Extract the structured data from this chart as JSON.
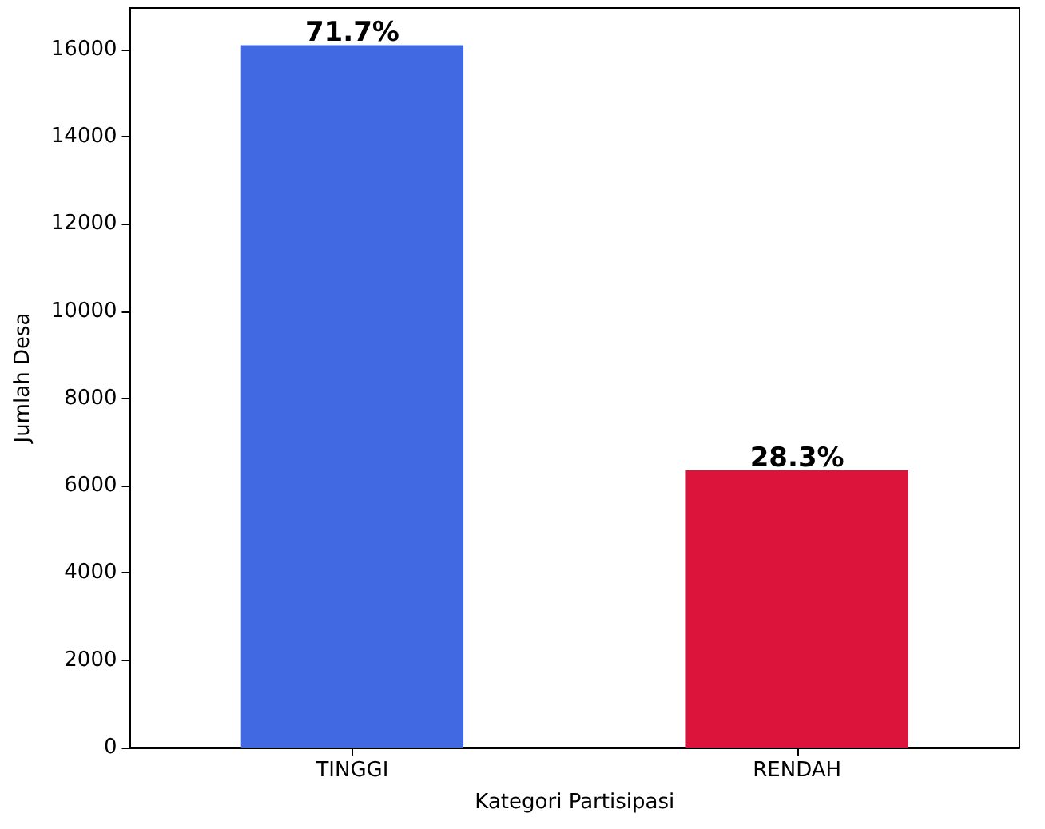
{
  "chart_data": {
    "type": "bar",
    "xlabel": "Kategori Partisipasi",
    "ylabel": "Jumlah Desa",
    "categories": [
      "TINGGI",
      "RENDAH"
    ],
    "values": [
      16100,
      6350
    ],
    "colors": [
      "#4169e1",
      "#dc143c"
    ],
    "ylim": [
      0,
      16950
    ],
    "yticks": [
      0,
      2000,
      4000,
      6000,
      8000,
      10000,
      12000,
      14000,
      16000
    ],
    "grid": false,
    "annotations": [
      {
        "text": "71.7%",
        "x": "TINGGI",
        "y": 16100
      },
      {
        "text": "28.3%",
        "x": "RENDAH",
        "y": 6350
      }
    ]
  }
}
